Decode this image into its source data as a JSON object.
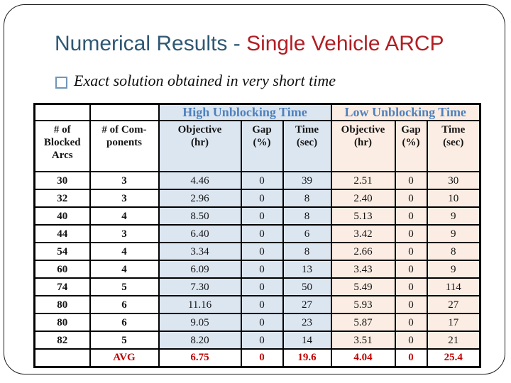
{
  "title": {
    "text_blue": "Numerical Results - ",
    "text_red": "Single Vehicle ARCP"
  },
  "bullet": {
    "marker": "square-outline-icon",
    "text": "Exact solution obtained in very short time"
  },
  "table": {
    "group_headers": {
      "high": "High Unblocking Time",
      "low": "Low Unblocking Time"
    },
    "columns": [
      "# of\nBlocked\nArcs",
      "# of Com-\nponents",
      "Objective\n(hr)",
      "Gap\n(%)",
      "Time\n(sec)",
      "Objective\n(hr)",
      "Gap\n(%)",
      "Time\n(sec)"
    ],
    "rows": [
      [
        "30",
        "3",
        "4.46",
        "0",
        "39",
        "2.51",
        "0",
        "30"
      ],
      [
        "32",
        "3",
        "2.96",
        "0",
        "8",
        "2.40",
        "0",
        "10"
      ],
      [
        "40",
        "4",
        "8.50",
        "0",
        "8",
        "5.13",
        "0",
        "9"
      ],
      [
        "44",
        "3",
        "6.40",
        "0",
        "6",
        "3.42",
        "0",
        "9"
      ],
      [
        "54",
        "4",
        "3.34",
        "0",
        "8",
        "2.66",
        "0",
        "8"
      ],
      [
        "60",
        "4",
        "6.09",
        "0",
        "13",
        "3.43",
        "0",
        "9"
      ],
      [
        "74",
        "5",
        "7.30",
        "0",
        "50",
        "5.49",
        "0",
        "114"
      ],
      [
        "80",
        "6",
        "11.16",
        "0",
        "27",
        "5.93",
        "0",
        "27"
      ],
      [
        "80",
        "6",
        "9.05",
        "0",
        "23",
        "5.87",
        "0",
        "17"
      ],
      [
        "82",
        "5",
        "8.20",
        "0",
        "14",
        "3.51",
        "0",
        "21"
      ]
    ],
    "avg_row": [
      "",
      "AVG",
      "6.75",
      "0",
      "19.6",
      "4.04",
      "0",
      "25.4"
    ]
  },
  "colors": {
    "title_blue": "#2e5874",
    "title_red": "#b01f24",
    "group_header_text": "#4f81bd",
    "high_bg": "#dce6f1",
    "low_bg": "#fbede3",
    "avg_text": "#c00000",
    "bullet_border": "#7096b8",
    "frame_border": "#1c1c1c"
  }
}
